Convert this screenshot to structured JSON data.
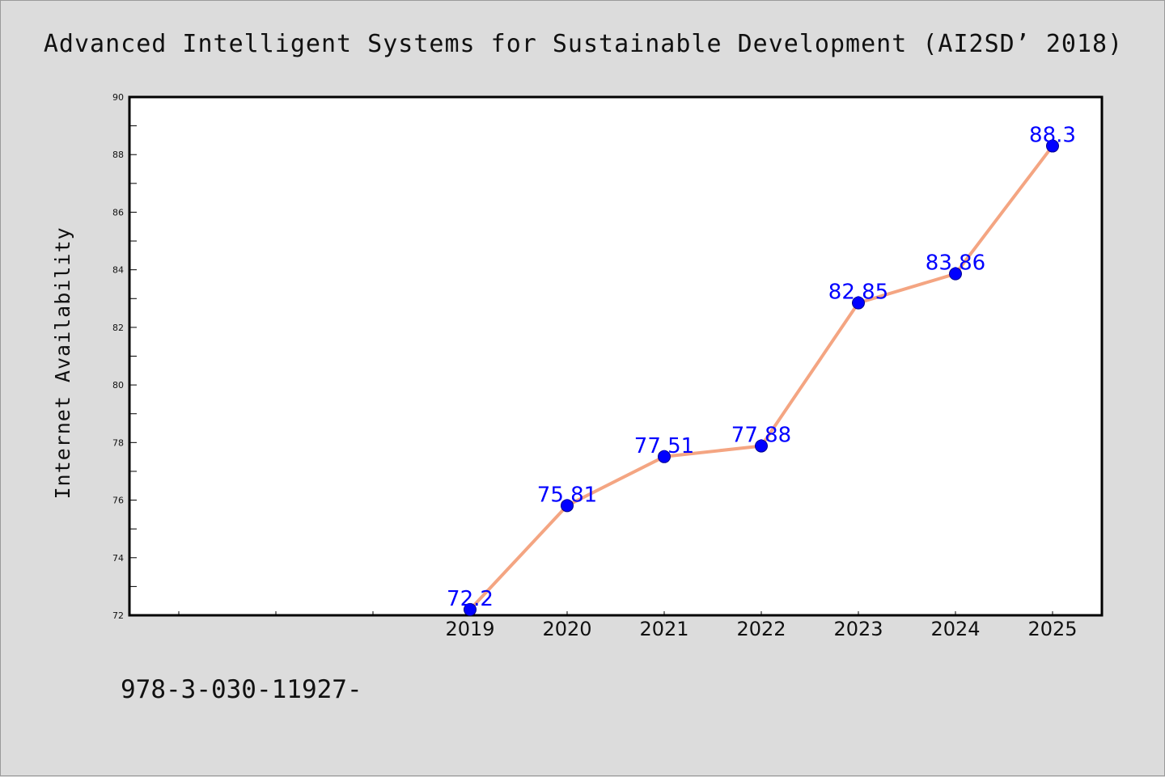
{
  "footer": {
    "text": "978-3-030-11927-"
  },
  "chart_data": {
    "type": "line",
    "title": "Advanced Intelligent Systems for Sustainable Development (AI2SD’ 2018)",
    "xlabel": "",
    "ylabel": "Internet Availability",
    "categories": [
      "2019",
      "2020",
      "2021",
      "2022",
      "2023",
      "2024",
      "2025"
    ],
    "series": [
      {
        "values": [
          72.2,
          75.81,
          77.51,
          77.88,
          82.85,
          83.86,
          88.3
        ]
      }
    ],
    "data_labels": [
      "72.2",
      "75.81",
      "77.51",
      "77.88",
      "82.85",
      "83.86",
      "88.3"
    ],
    "ylim": [
      72,
      90
    ],
    "yticks": [
      "72",
      "74",
      "76",
      "78",
      "80",
      "82",
      "84",
      "86",
      "88",
      "90"
    ],
    "grid": false,
    "line_color": "#f4a582",
    "marker_color": "#0000ff",
    "label_color": "#0000ff"
  }
}
